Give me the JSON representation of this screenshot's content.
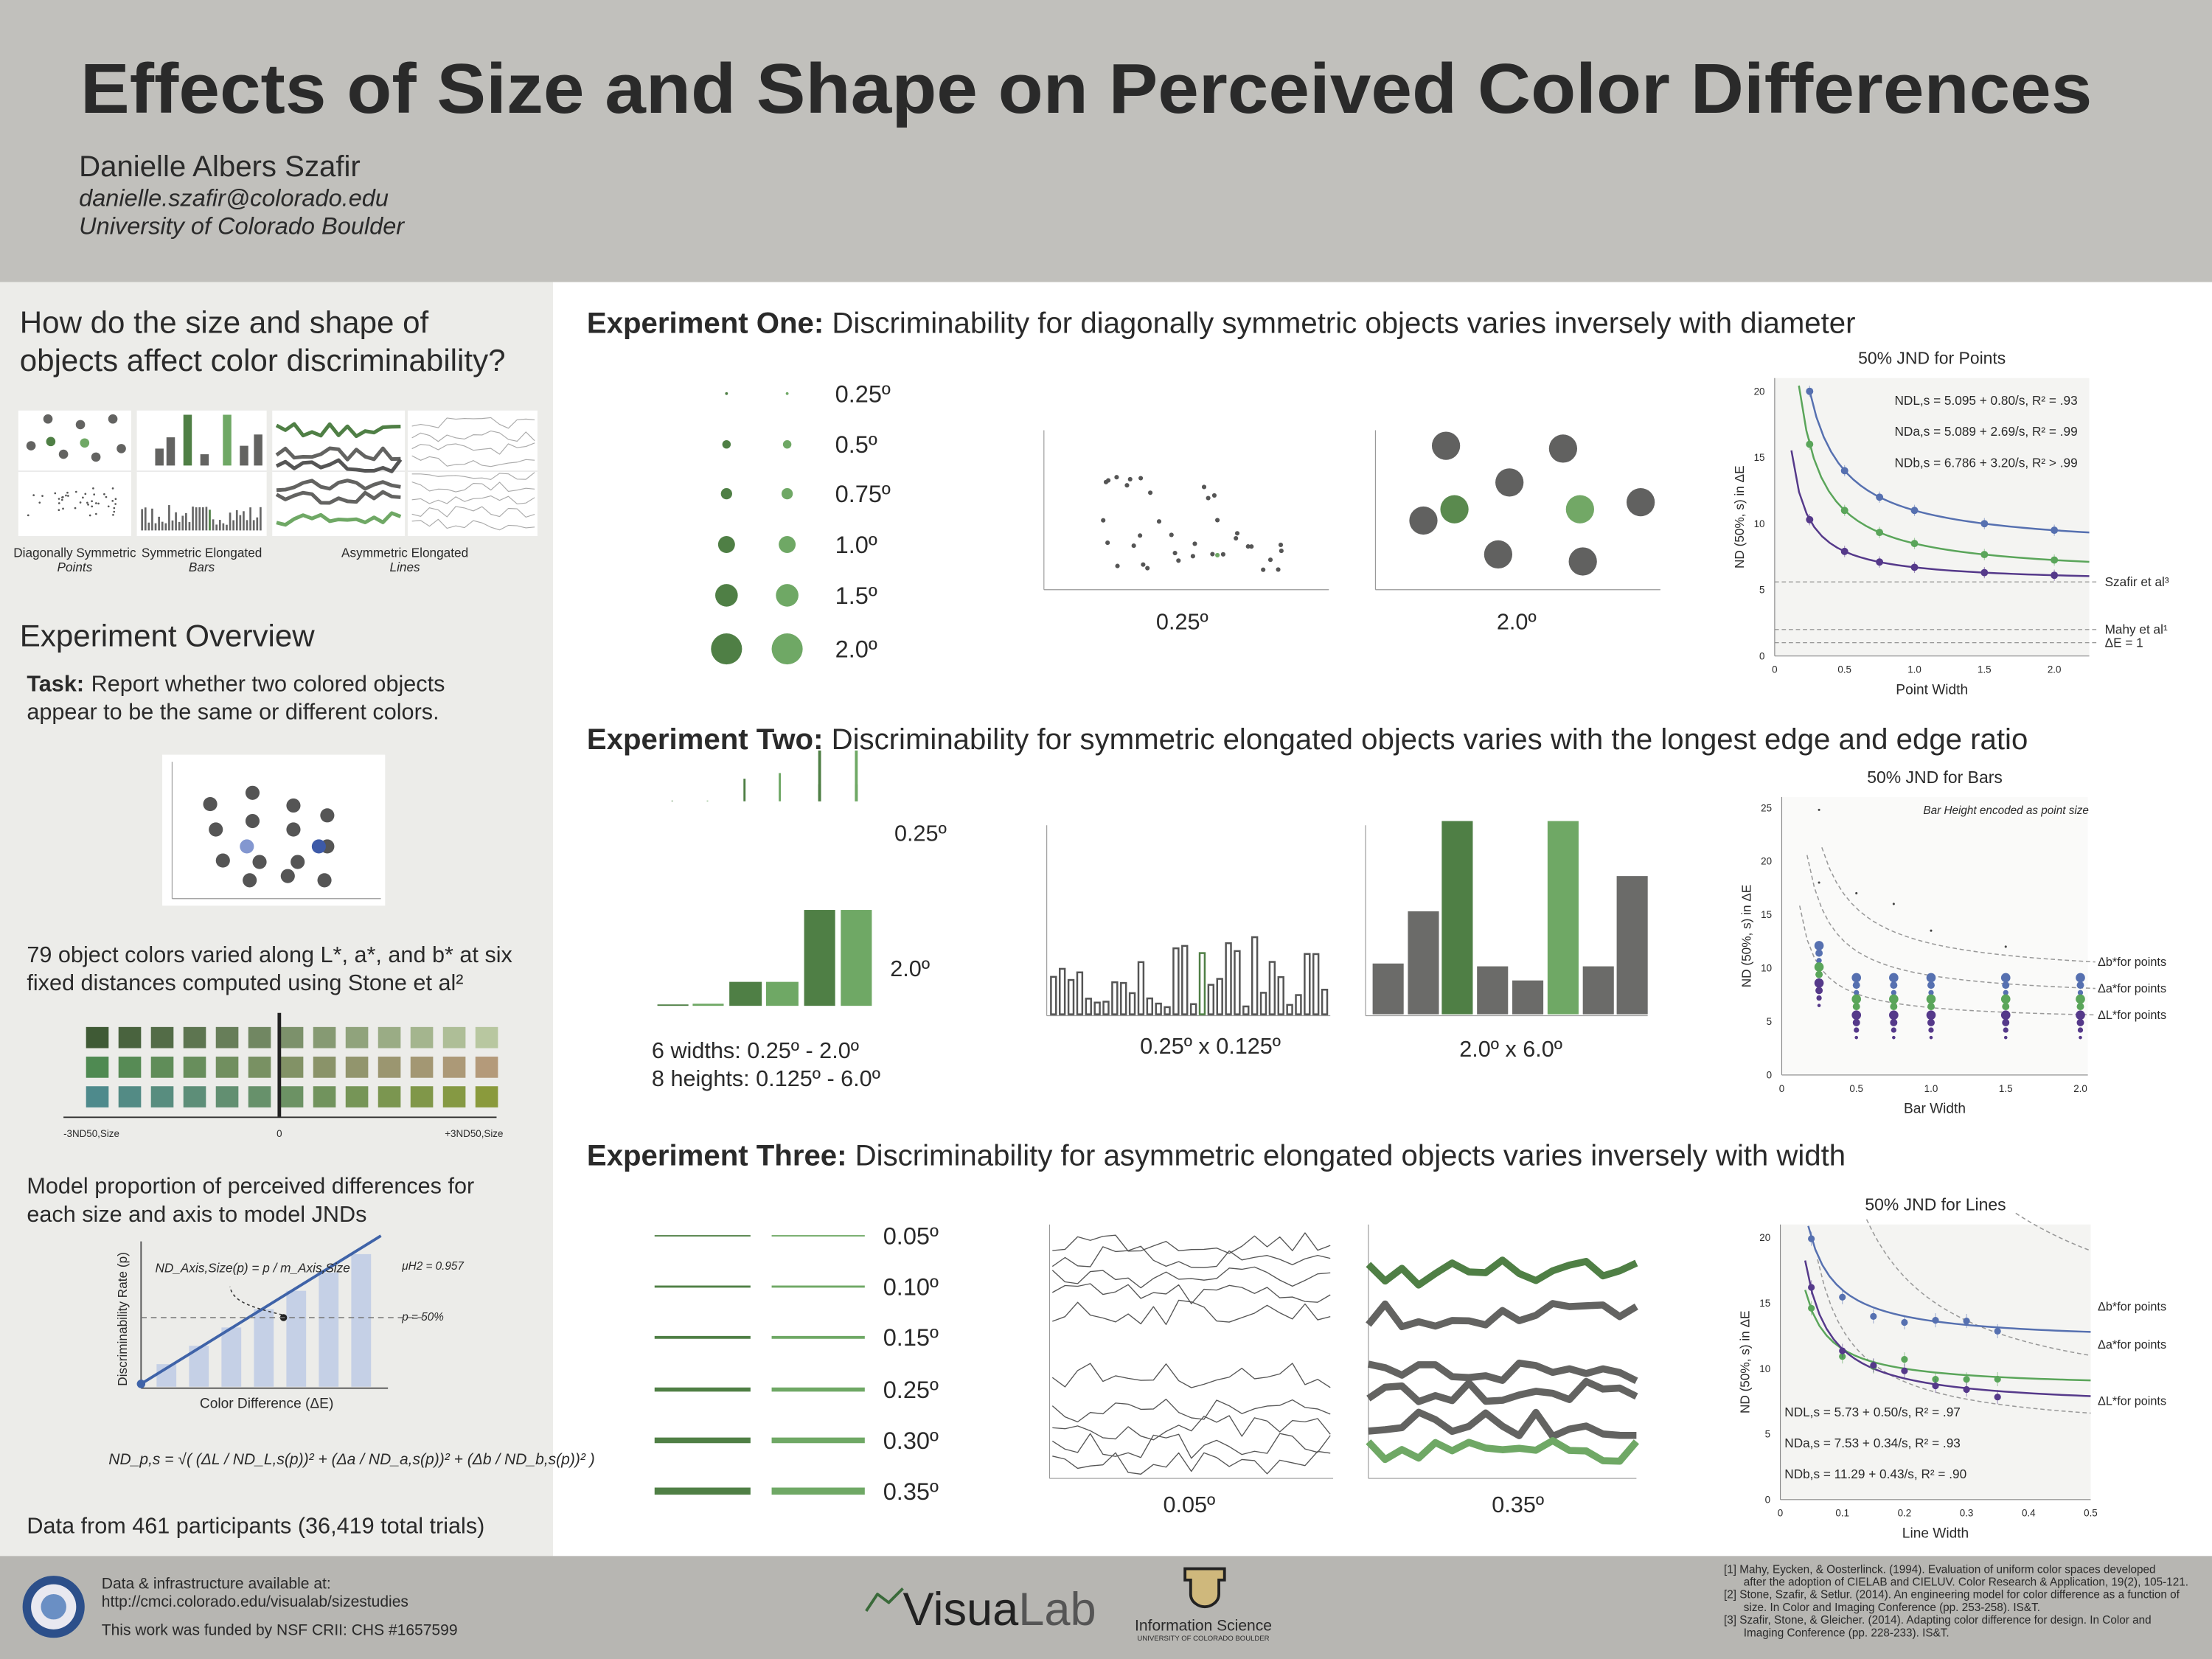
{
  "header": {
    "title": "Effects of Size and Shape on Perceived Color Differences",
    "author": "Danielle Albers Szafir",
    "email": "danielle.szafir@colorado.edu",
    "affiliation": "University of Colorado Boulder"
  },
  "left": {
    "question": [
      "How do the size and shape of",
      "objects affect color discriminability?"
    ],
    "thumbnails": [
      {
        "name": "Diagonally Symmetric",
        "kind": "Points"
      },
      {
        "name": "Symmetric Elongated",
        "kind": "Bars"
      },
      {
        "name": "Asymmetric Elongated",
        "kind": "Lines"
      }
    ],
    "overview_heading": "Experiment Overview",
    "task_label": "Task:",
    "task_text": [
      "Report whether two colored objects",
      "appear to be the same or different colors."
    ],
    "colors_text": [
      "79 object colors varied along L*, a*, and b* at six",
      "fixed distances computed using Stone et al²"
    ],
    "grid_labels": [
      "-3ND50,Size",
      "0",
      "+3ND50,Size"
    ],
    "model_text": [
      "Model proportion of perceived differences for",
      "each size and axis to model JNDs"
    ],
    "model_chart": {
      "ylabel": "Discriminability Rate (p)",
      "xlabel": "Color Difference (ΔE)",
      "formula": "ND_Axis,Size(p) = p / m_Axis,Size",
      "mu": "μH2 = 0.957",
      "p50": "p = 50%"
    },
    "formula": "ND_p,s = √( (ΔL / ND_L,s(p))² + (Δa / ND_a,s(p))² + (Δb / ND_b,s(p))² )",
    "data_text": "Data from 461 participants (36,419 total trials)"
  },
  "experiments": [
    {
      "label": "Experiment One:",
      "headline": " Discriminability for diagonally symmetric objects varies inversely with diameter",
      "sizes": [
        "0.25º",
        "0.5º",
        "0.75º",
        "1.0º",
        "1.5º",
        "2.0º"
      ],
      "panels": [
        "0.25º",
        "2.0º"
      ],
      "chart": {
        "title": "50% JND for Points",
        "ylabel": "ND (50%, s) in ΔE",
        "xlabel": "Point Width",
        "yticks": [
          "0",
          "5",
          "10",
          "15",
          "20"
        ],
        "xticks": [
          "0",
          "0.5",
          "1.0",
          "1.5",
          "2.0"
        ],
        "equations": [
          "NDL,s = 5.095 + 0.80/s, R² = .93",
          "NDa,s = 5.089 + 2.69/s, R² = .99",
          "NDb,s = 6.786 + 3.20/s, R² > .99"
        ],
        "references": [
          "Szafir et al³",
          "Mahy et al¹",
          "ΔE = 1"
        ]
      }
    },
    {
      "label": "Experiment Two:",
      "headline": " Discriminability for symmetric elongated objects varies with the longest edge and edge ratio",
      "sizes": [
        "0.25º",
        "2.0º"
      ],
      "caption": [
        "6  widths:    0.25º - 2.0º",
        "8 heights: 0.125º - 6.0º"
      ],
      "panels": [
        "0.25º x 0.125º",
        "2.0º x 6.0º"
      ],
      "chart": {
        "title": "50% JND for Bars",
        "note": "Bar Height encoded as point size",
        "ylabel": "ND (50%, s) in ΔE",
        "xlabel": "Bar Width",
        "yticks": [
          "0",
          "5",
          "10",
          "15",
          "20",
          "25"
        ],
        "xticks": [
          "0",
          "0.5",
          "1.0",
          "1.5",
          "2.0"
        ],
        "legend": [
          "Δb*for points",
          "Δa*for points",
          "ΔL*for points"
        ]
      }
    },
    {
      "label": "Experiment Three:",
      "headline": " Discriminability for asymmetric elongated objects varies inversely with width",
      "sizes": [
        "0.05º",
        "0.10º",
        "0.15º",
        "0.25º",
        "0.30º",
        "0.35º"
      ],
      "panels": [
        "0.05º",
        "0.35º"
      ],
      "chart": {
        "title": "50% JND for Lines",
        "ylabel": "ND (50%, s) in ΔE",
        "xlabel": "Line Width",
        "yticks": [
          "0",
          "5",
          "10",
          "15",
          "20"
        ],
        "xticks": [
          "0",
          "0.1",
          "0.2",
          "0.3",
          "0.4",
          "0.5"
        ],
        "legend": [
          "Δb*for points",
          "Δa*for points",
          "ΔL*for points"
        ],
        "equations": [
          "NDL,s = 5.73 + 0.50/s, R² = .97",
          "NDa,s = 7.53 + 0.34/s, R² = .93",
          "NDb,s = 11.29 + 0.43/s, R² = .90"
        ]
      }
    }
  ],
  "footer": {
    "data_label": "Data & infrastructure available at:",
    "url": "http://cmci.colorado.edu/visualab/sizestudies",
    "funding": "This work was funded by NSF CRII: CHS #1657599",
    "logo_a": "Visua",
    "logo_b": "Lab",
    "dept": "Information Science",
    "university": "UNIVERSITY OF COLORADO BOULDER",
    "references": [
      [
        "[1] Mahy, Eycken, & Oosterlinck. (1994). Evaluation of uniform color spaces developed",
        "after the adoption of CIELAB and CIELUV. Color Research & Application, 19(2), 105-121."
      ],
      [
        "[2] Stone, Szafir, & Setlur. (2014). An engineering model for color difference as a function of",
        "size. In Color and Imaging Conference (pp. 253-258). IS&T."
      ],
      [
        "[3] Szafir, Stone, & Gleicher. (2014). Adapting color difference for design. In Color and",
        "Imaging Conference (pp. 228-233). IS&T."
      ]
    ]
  }
}
